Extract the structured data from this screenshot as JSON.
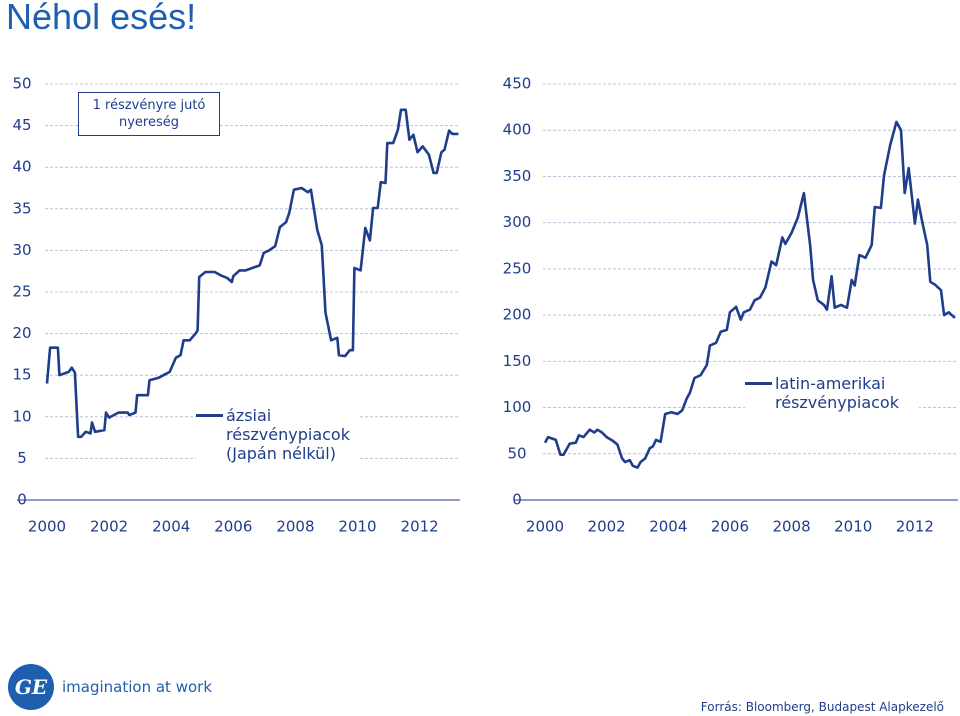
{
  "title": "Néhol esés!",
  "chart_data": [
    {
      "type": "line",
      "annotation": "1 részvényre jutó nyereség",
      "x": [
        2000.0,
        2000.1,
        2000.35,
        2000.4,
        2000.7,
        2000.8,
        2000.9,
        2001.0,
        2001.1,
        2001.25,
        2001.4,
        2001.45,
        2001.55,
        2001.85,
        2001.9,
        2002.0,
        2002.3,
        2002.6,
        2002.65,
        2002.85,
        2002.9,
        2003.25,
        2003.3,
        2003.6,
        2003.75,
        2003.95,
        2004.15,
        2004.3,
        2004.4,
        2004.6,
        2004.8,
        2004.85,
        2004.9,
        2005.1,
        2005.4,
        2005.6,
        2005.8,
        2005.95,
        2006.0,
        2006.2,
        2006.4,
        2006.7,
        2006.85,
        2006.98,
        2007.15,
        2007.35,
        2007.5,
        2007.7,
        2007.8,
        2007.95,
        2008.2,
        2008.4,
        2008.5,
        2008.7,
        2008.85,
        2008.97,
        2009.15,
        2009.35,
        2009.4,
        2009.6,
        2009.75,
        2009.85,
        2009.9,
        2010.1,
        2010.25,
        2010.4,
        2010.5,
        2010.65,
        2010.75,
        2010.9,
        2010.96,
        2011.15,
        2011.3,
        2011.4,
        2011.55,
        2011.67,
        2011.8,
        2011.93,
        2012.1,
        2012.3,
        2012.45,
        2012.55,
        2012.7,
        2012.8,
        2012.95,
        2013.05,
        2013.25
      ],
      "series": [
        {
          "name": "ázsiai részvénypiacok (Japán nélkül)",
          "color": "#1f3d8a",
          "values": [
            14,
            18.3,
            18.3,
            15,
            15.4,
            15.9,
            15.3,
            7.6,
            7.6,
            8.2,
            8,
            9.3,
            8.2,
            8.4,
            10.5,
            9.9,
            10.5,
            10.5,
            10.2,
            10.5,
            12.6,
            12.6,
            14.4,
            14.7,
            15,
            15.4,
            17.1,
            17.4,
            19.2,
            19.2,
            20.1,
            20.4,
            26.8,
            27.4,
            27.4,
            27,
            26.7,
            26.2,
            26.9,
            27.6,
            27.6,
            28,
            28.2,
            29.7,
            30,
            30.5,
            32.8,
            33.4,
            34.5,
            37.3,
            37.5,
            37,
            37.3,
            32.5,
            30.6,
            22.5,
            19.2,
            19.5,
            17.4,
            17.3,
            18,
            18,
            27.9,
            27.6,
            32.7,
            31.2,
            35.1,
            35.1,
            38.2,
            38.1,
            42.9,
            42.9,
            44.5,
            46.9,
            46.9,
            43.3,
            43.9,
            41.8,
            42.5,
            41.5,
            39.3,
            39.3,
            41.8,
            42.1,
            44.4,
            44,
            44
          ]
        }
      ],
      "xlim": [
        2000,
        2013.3
      ],
      "xticks": [
        2000,
        2002,
        2004,
        2006,
        2008,
        2010,
        2012
      ],
      "ylim": [
        0,
        50
      ],
      "yticks": [
        0,
        5,
        10,
        15,
        20,
        25,
        30,
        35,
        40,
        45,
        50
      ],
      "grid": true
    },
    {
      "type": "line",
      "x": [
        2000.0,
        2000.1,
        2000.35,
        2000.5,
        2000.6,
        2000.8,
        2001.0,
        2001.1,
        2001.25,
        2001.45,
        2001.6,
        2001.7,
        2001.85,
        2002.0,
        2002.2,
        2002.35,
        2002.5,
        2002.6,
        2002.75,
        2002.85,
        2003.0,
        2003.1,
        2003.25,
        2003.4,
        2003.5,
        2003.6,
        2003.75,
        2003.9,
        2004.1,
        2004.3,
        2004.45,
        2004.6,
        2004.7,
        2004.85,
        2005.05,
        2005.25,
        2005.35,
        2005.55,
        2005.7,
        2005.9,
        2006.0,
        2006.2,
        2006.35,
        2006.45,
        2006.65,
        2006.8,
        2006.98,
        2007.15,
        2007.35,
        2007.5,
        2007.7,
        2007.8,
        2008.0,
        2008.2,
        2008.4,
        2008.6,
        2008.7,
        2008.85,
        2009.05,
        2009.15,
        2009.3,
        2009.4,
        2009.6,
        2009.8,
        2009.95,
        2010.05,
        2010.2,
        2010.4,
        2010.6,
        2010.7,
        2010.9,
        2011.0,
        2011.2,
        2011.4,
        2011.55,
        2011.67,
        2011.8,
        2012.0,
        2012.1,
        2012.25,
        2012.4,
        2012.5,
        2012.65,
        2012.85,
        2012.95,
        2013.1,
        2013.3
      ],
      "series": [
        {
          "name": "latin-amerikai részvénypiacok",
          "color": "#1f3d8a",
          "values": [
            62,
            68,
            65,
            49,
            49,
            61,
            62,
            70,
            68,
            76,
            73,
            76,
            73,
            68,
            64,
            60,
            45,
            41,
            43,
            37,
            35,
            41,
            45,
            56,
            58,
            65,
            63,
            93,
            95,
            93,
            97,
            110,
            116,
            132,
            135,
            146,
            167,
            170,
            182,
            184,
            203,
            209,
            195,
            203,
            206,
            216,
            219,
            230,
            258,
            254,
            284,
            277,
            289,
            305,
            332,
            276,
            238,
            216,
            211,
            206,
            242,
            208,
            211,
            208,
            238,
            232,
            265,
            262,
            276,
            317,
            316,
            351,
            384,
            409,
            400,
            332,
            359,
            299,
            325,
            299,
            276,
            236,
            233,
            227,
            200,
            203,
            197
          ]
        }
      ],
      "xlim": [
        2000,
        2013.4
      ],
      "xticks": [
        2000,
        2002,
        2004,
        2006,
        2008,
        2010,
        2012
      ],
      "ylim": [
        0,
        450
      ],
      "yticks": [
        0,
        50,
        100,
        150,
        200,
        250,
        300,
        350,
        400,
        450
      ],
      "grid": true
    }
  ],
  "logo": {
    "mark": "GE",
    "tagline": "imagination at work"
  },
  "source": "Forrás: Bloomberg, Budapest Alapkezelő"
}
